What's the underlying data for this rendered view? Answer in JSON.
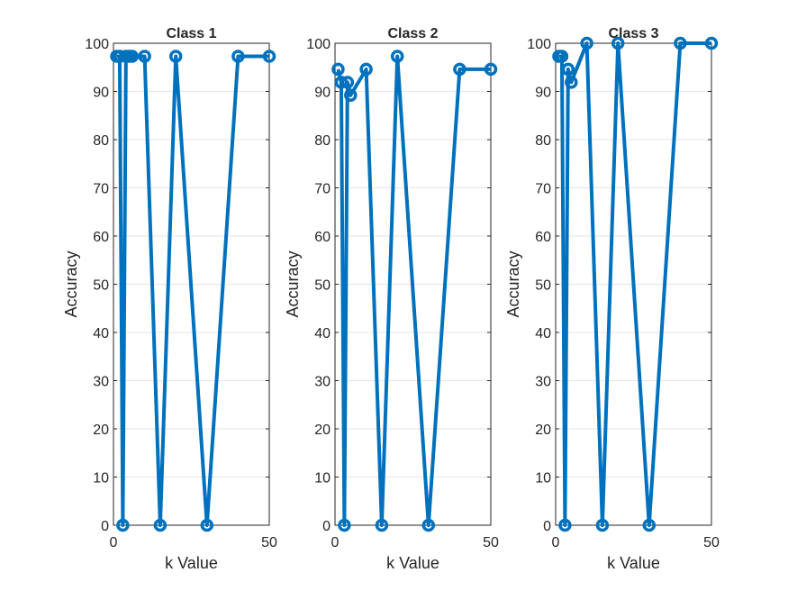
{
  "figure": {
    "background": "#ffffff",
    "line_color": "#0072BD",
    "grid_color": "#e6e6e6",
    "axis_color": "#262626"
  },
  "chart_data": [
    {
      "type": "line",
      "title": "Class 1",
      "xlabel": "k Value",
      "ylabel": "Accuracy",
      "xlim": [
        0,
        50
      ],
      "ylim": [
        0,
        100
      ],
      "xticks": [
        0,
        50
      ],
      "yticks": [
        0,
        10,
        20,
        30,
        40,
        50,
        60,
        70,
        80,
        90,
        100
      ],
      "grid": "horizontal",
      "marker": "circle",
      "series": [
        {
          "x": [
            1,
            2,
            3,
            4,
            5,
            6,
            10,
            15,
            20,
            30,
            40,
            50
          ],
          "y": [
            97.3,
            97.3,
            0,
            97.3,
            97.3,
            97.3,
            97.3,
            0,
            97.3,
            0,
            97.3,
            97.3
          ]
        }
      ]
    },
    {
      "type": "line",
      "title": "Class 2",
      "xlabel": "k Value",
      "ylabel": "Accuracy",
      "xlim": [
        0,
        50
      ],
      "ylim": [
        0,
        100
      ],
      "xticks": [
        0,
        50
      ],
      "yticks": [
        0,
        10,
        20,
        30,
        40,
        50,
        60,
        70,
        80,
        90,
        100
      ],
      "grid": "horizontal",
      "marker": "circle",
      "series": [
        {
          "x": [
            1,
            2,
            3,
            4,
            5,
            10,
            15,
            20,
            30,
            40,
            50
          ],
          "y": [
            94.6,
            91.9,
            0,
            91.9,
            89.2,
            94.6,
            0,
            97.3,
            0,
            94.6,
            94.6
          ]
        }
      ]
    },
    {
      "type": "line",
      "title": "Class 3",
      "xlabel": "k Value",
      "ylabel": "Accuracy",
      "xlim": [
        0,
        50
      ],
      "ylim": [
        0,
        100
      ],
      "xticks": [
        0,
        50
      ],
      "yticks": [
        0,
        10,
        20,
        30,
        40,
        50,
        60,
        70,
        80,
        90,
        100
      ],
      "grid": "horizontal",
      "marker": "circle",
      "series": [
        {
          "x": [
            1,
            2,
            3,
            4,
            5,
            10,
            15,
            20,
            30,
            40,
            50
          ],
          "y": [
            97.3,
            97.3,
            0,
            94.6,
            91.9,
            100,
            0,
            100,
            0,
            100,
            100
          ]
        }
      ]
    }
  ]
}
